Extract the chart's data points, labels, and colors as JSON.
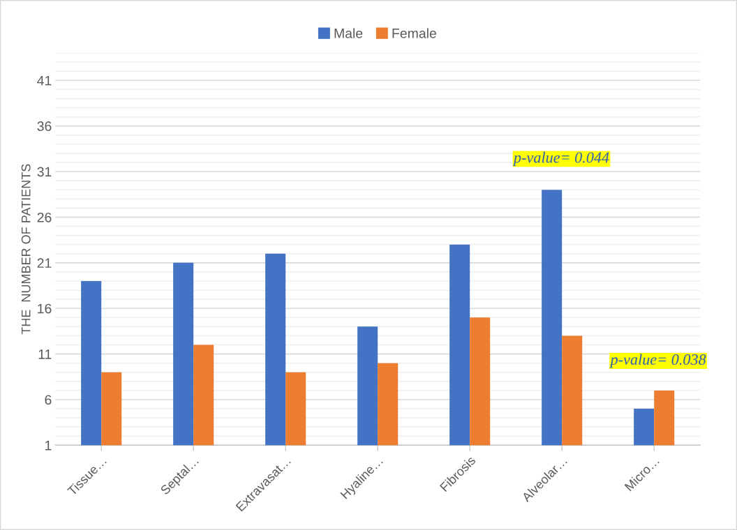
{
  "chart_data": {
    "type": "bar",
    "ylabel": "THE  NUMBER OF PATIENTS",
    "categories": [
      "Tissue…",
      "Septal…",
      "Extravasat…",
      "Hyaline…",
      "Fibrosis",
      "Alveolar…",
      "Micro…"
    ],
    "series": [
      {
        "name": "Male",
        "color": "#4472c4",
        "values": [
          19,
          21,
          22,
          14,
          23,
          29,
          5
        ]
      },
      {
        "name": "Female",
        "color": "#ed7d31",
        "values": [
          9,
          12,
          9,
          10,
          15,
          13,
          7
        ]
      }
    ],
    "ylim": [
      1,
      44
    ],
    "yticks": [
      1,
      {
        "value": 2,
        "label": null
      },
      {
        "value": 3,
        "label": null
      },
      {
        "value": 4,
        "label": null
      },
      {
        "value": 5,
        "label": null
      },
      6,
      {
        "value": 7,
        "label": null
      },
      {
        "value": 8,
        "label": null
      },
      {
        "value": 9,
        "label": null
      },
      {
        "value": 10,
        "label": null
      },
      11,
      {
        "value": 12,
        "label": null
      },
      {
        "value": 13,
        "label": null
      },
      {
        "value": 14,
        "label": null
      },
      {
        "value": 15,
        "label": null
      },
      16,
      {
        "value": 17,
        "label": null
      },
      {
        "value": 18,
        "label": null
      },
      {
        "value": 19,
        "label": null
      },
      {
        "value": 20,
        "label": null
      },
      21,
      {
        "value": 22,
        "label": null
      },
      {
        "value": 23,
        "label": null
      },
      {
        "value": 24,
        "label": null
      },
      {
        "value": 25,
        "label": null
      },
      26,
      {
        "value": 27,
        "label": null
      },
      {
        "value": 28,
        "label": null
      },
      {
        "value": 29,
        "label": null
      },
      {
        "value": 30,
        "label": null
      },
      31,
      {
        "value": 32,
        "label": null
      },
      {
        "value": 33,
        "label": null
      },
      {
        "value": 34,
        "label": null
      },
      {
        "value": 35,
        "label": null
      },
      36,
      {
        "value": 37,
        "label": null
      },
      {
        "value": 38,
        "label": null
      },
      {
        "value": 39,
        "label": null
      },
      {
        "value": 40,
        "label": null
      },
      41,
      {
        "value": 42,
        "label": null
      },
      {
        "value": 43,
        "label": null
      },
      {
        "value": 44,
        "label": null
      }
    ],
    "grid": "y",
    "legend": "top",
    "annotations": [
      "p-value= 0.044",
      "p-value= 0.038"
    ]
  }
}
